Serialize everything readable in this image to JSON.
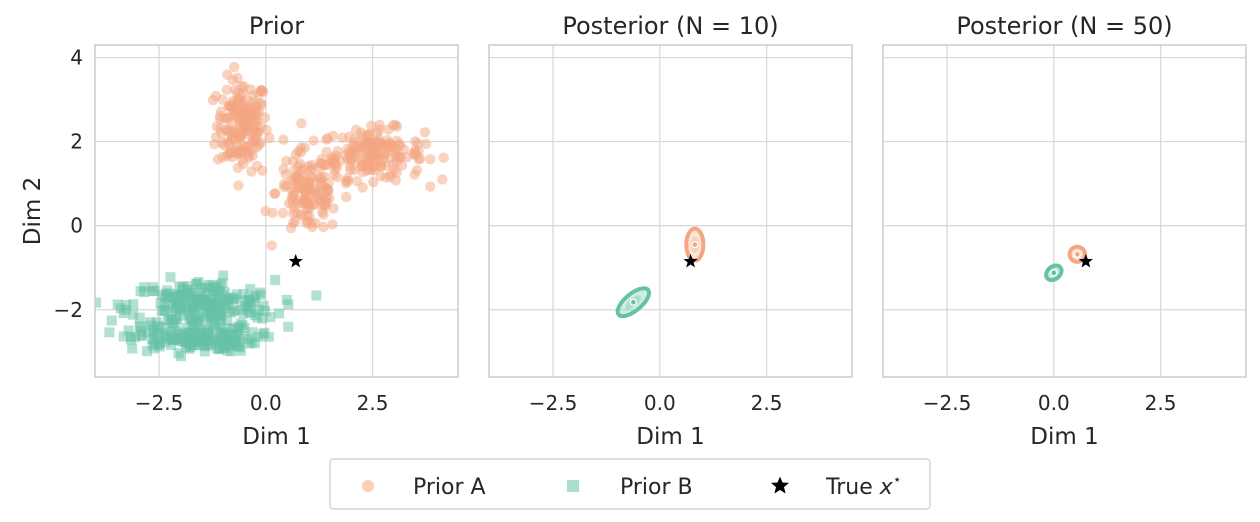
{
  "chart_data": [
    {
      "type": "scatter",
      "title": "Prior",
      "xlabel": "Dim 1",
      "ylabel": "Dim 2",
      "xlim": [
        -4.0,
        4.5
      ],
      "ylim": [
        -3.6,
        4.3
      ],
      "xticks": [
        -2.5,
        0.0,
        2.5
      ],
      "xtick_labels": [
        "−2.5",
        "0.0",
        "2.5"
      ],
      "yticks": [
        -2,
        0,
        2,
        4
      ],
      "ytick_labels": [
        "−2",
        "0",
        "2",
        "4"
      ],
      "grid": true,
      "clusters": [
        {
          "series": "Prior A",
          "cx": -0.55,
          "cy": 2.4,
          "sx": 0.3,
          "sy": 0.55,
          "n": 170
        },
        {
          "series": "Prior A",
          "cx": 2.5,
          "cy": 1.7,
          "sx": 0.6,
          "sy": 0.3,
          "n": 170
        },
        {
          "series": "Prior A",
          "cx": 1.0,
          "cy": 0.8,
          "sx": 0.38,
          "sy": 0.5,
          "n": 140
        },
        {
          "series": "Prior B",
          "cx": -1.5,
          "cy": -1.9,
          "sx": 0.85,
          "sy": 0.3,
          "n": 230
        },
        {
          "series": "Prior B",
          "cx": -1.7,
          "cy": -2.7,
          "sx": 0.75,
          "sy": 0.15,
          "n": 150
        }
      ],
      "true_point": {
        "x": 0.7,
        "y": -0.85
      }
    },
    {
      "type": "scatter",
      "title": "Posterior (N = 10)",
      "xlabel": "Dim 1",
      "ylabel": "",
      "xlim": [
        -4.0,
        4.5
      ],
      "ylim": [
        -3.6,
        4.3
      ],
      "xticks": [
        -2.5,
        0.0,
        2.5
      ],
      "xtick_labels": [
        "−2.5",
        "0.0",
        "2.5"
      ],
      "yticks": [
        -2,
        0,
        2,
        4
      ],
      "ytick_labels": [],
      "grid": true,
      "posteriors": [
        {
          "series": "Prior A",
          "x": 0.82,
          "y": -0.45,
          "rx": 0.2,
          "ry": 0.38,
          "rot": 0
        },
        {
          "series": "Prior B",
          "x": -0.62,
          "y": -1.82,
          "rx": 0.45,
          "ry": 0.2,
          "rot": -40
        }
      ],
      "true_point": {
        "x": 0.72,
        "y": -0.85
      }
    },
    {
      "type": "scatter",
      "title": "Posterior (N = 50)",
      "xlabel": "Dim 1",
      "ylabel": "",
      "xlim": [
        -4.0,
        4.5
      ],
      "ylim": [
        -3.6,
        4.3
      ],
      "xticks": [
        -2.5,
        0.0,
        2.5
      ],
      "xtick_labels": [
        "−2.5",
        "0.0",
        "2.5"
      ],
      "yticks": [
        -2,
        0,
        2,
        4
      ],
      "ytick_labels": [],
      "grid": true,
      "posteriors": [
        {
          "series": "Prior A",
          "x": 0.55,
          "y": -0.68,
          "rx": 0.18,
          "ry": 0.18,
          "rot": 0
        },
        {
          "series": "Prior B",
          "x": 0.0,
          "y": -1.12,
          "rx": 0.2,
          "ry": 0.15,
          "rot": -40
        }
      ],
      "true_point": {
        "x": 0.75,
        "y": -0.85
      }
    }
  ],
  "legend": {
    "placement": "bottom-center",
    "entries": [
      {
        "label": "Prior A",
        "marker": "circle",
        "color": "#f4a582"
      },
      {
        "label": "Prior B",
        "marker": "square",
        "color": "#66c2a5"
      },
      {
        "label": "True ",
        "math": "x",
        "sup": "⋆",
        "marker": "star",
        "color": "#000000"
      }
    ]
  },
  "colors": {
    "prior_a": "#f4a582",
    "prior_b": "#66c2a5",
    "true": "#000000",
    "grid": "#d9d9d9",
    "spine": "#cccccc"
  }
}
